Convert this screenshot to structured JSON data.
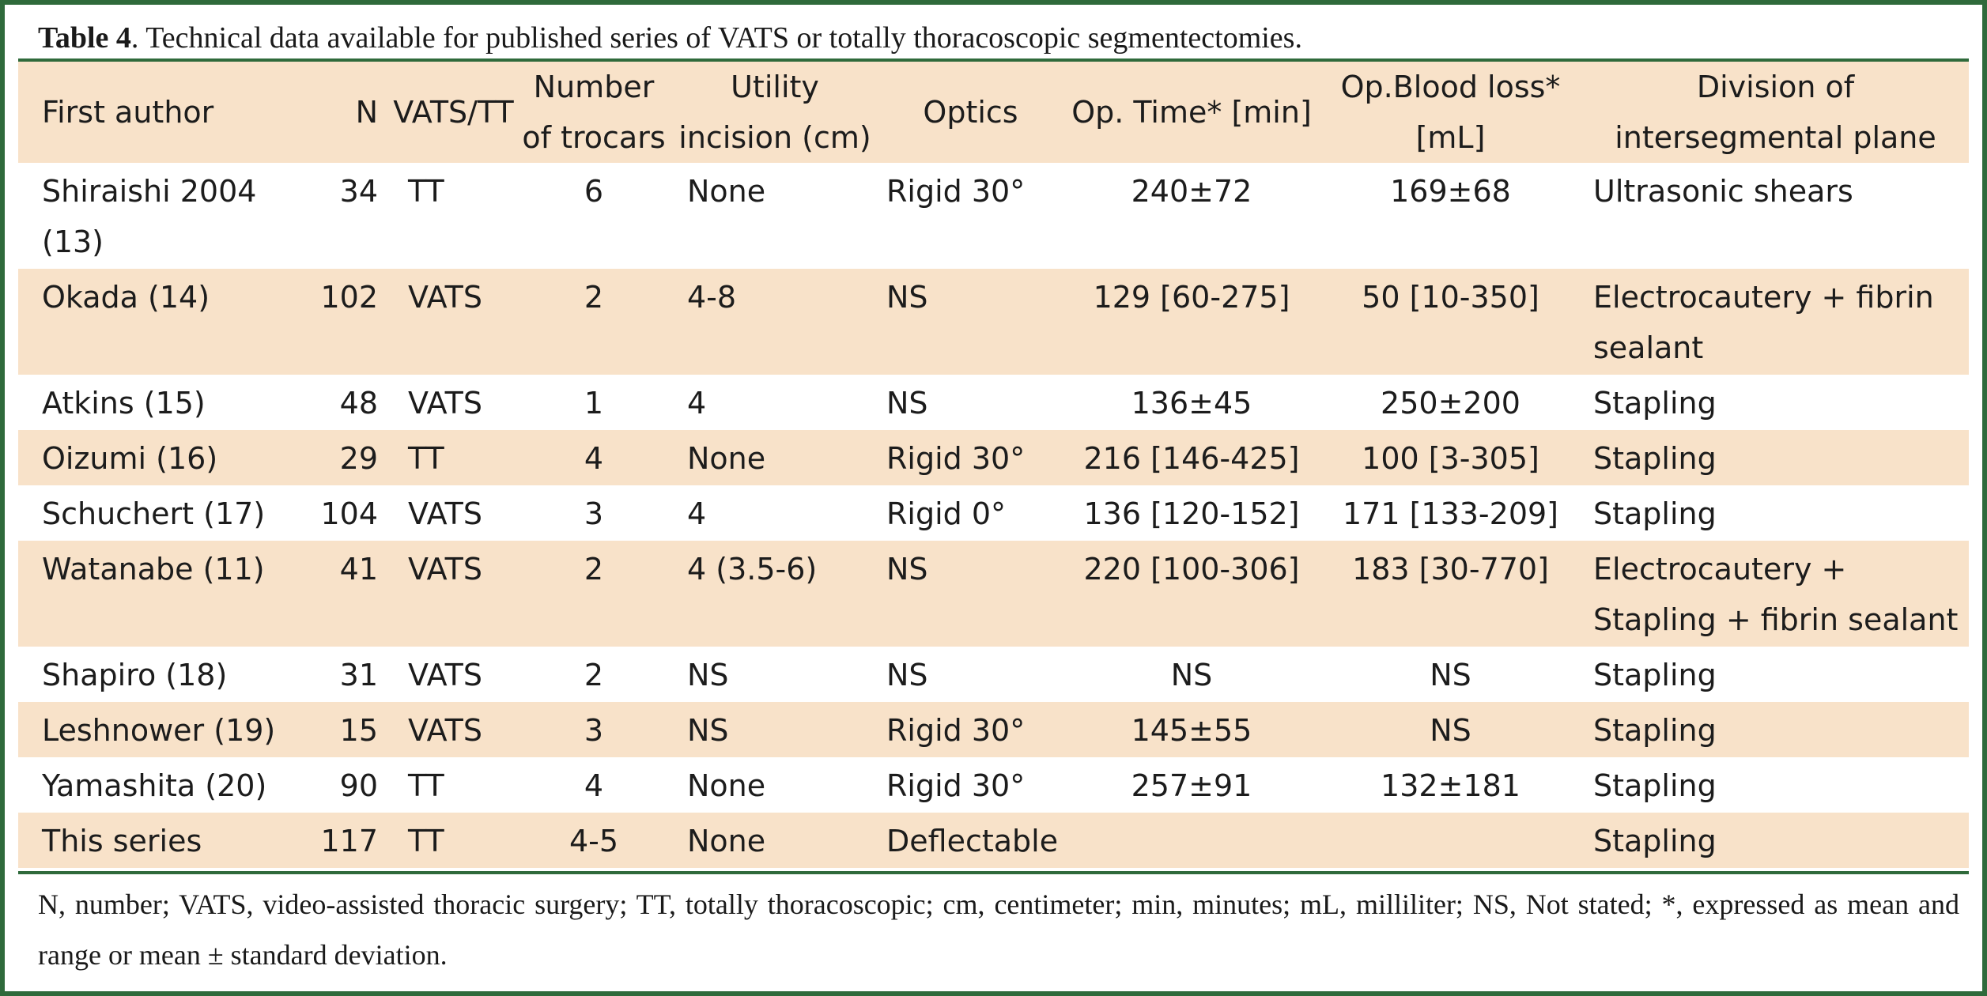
{
  "caption": {
    "label": "Table 4",
    "text": ". Technical data available for published series of VATS or totally thoracoscopic segmentectomies."
  },
  "headers": [
    "First author",
    "N",
    "VATS/TT",
    "Number of trocars",
    "Utility incision (cm)",
    "Optics",
    "Op. Time* [min]",
    "Op.Blood loss* [mL]",
    "Division of intersegmental plane"
  ],
  "rows": [
    {
      "author": "Shiraishi 2004 (13)",
      "n": "34",
      "vats_tt": "TT",
      "trocars": "6",
      "utility": "None",
      "optics": "Rigid 30°",
      "op_time": "240±72",
      "blood_loss": "169±68",
      "division": "Ultrasonic shears"
    },
    {
      "author": "Okada (14)",
      "n": "102",
      "vats_tt": "VATS",
      "trocars": "2",
      "utility": "4-8",
      "optics": "NS",
      "op_time": "129 [60-275]",
      "blood_loss": "50 [10-350]",
      "division": "Electrocautery + fibrin sealant"
    },
    {
      "author": "Atkins (15)",
      "n": "48",
      "vats_tt": "VATS",
      "trocars": "1",
      "utility": "4",
      "optics": "NS",
      "op_time": "136±45",
      "blood_loss": "250±200",
      "division": "Stapling"
    },
    {
      "author": "Oizumi (16)",
      "n": "29",
      "vats_tt": "TT",
      "trocars": "4",
      "utility": "None",
      "optics": "Rigid 30°",
      "op_time": "216 [146-425]",
      "blood_loss": "100 [3-305]",
      "division": "Stapling"
    },
    {
      "author": "Schuchert (17)",
      "n": "104",
      "vats_tt": "VATS",
      "trocars": "3",
      "utility": "4",
      "optics": "Rigid 0°",
      "op_time": "136 [120-152]",
      "blood_loss": "171 [133-209]",
      "division": "Stapling"
    },
    {
      "author": "Watanabe (11)",
      "n": "41",
      "vats_tt": "VATS",
      "trocars": "2",
      "utility": "4 (3.5-6)",
      "optics": "NS",
      "op_time": "220 [100-306]",
      "blood_loss": "183 [30-770]",
      "division": "Electrocautery + Stapling + fibrin sealant"
    },
    {
      "author": "Shapiro (18)",
      "n": "31",
      "vats_tt": "VATS",
      "trocars": "2",
      "utility": "NS",
      "optics": "NS",
      "op_time": "NS",
      "blood_loss": "NS",
      "division": "Stapling"
    },
    {
      "author": "Leshnower (19)",
      "n": "15",
      "vats_tt": "VATS",
      "trocars": "3",
      "utility": "NS",
      "optics": "Rigid 30°",
      "op_time": "145±55",
      "blood_loss": "NS",
      "division": "Stapling"
    },
    {
      "author": "Yamashita (20)",
      "n": "90",
      "vats_tt": "TT",
      "trocars": "4",
      "utility": "None",
      "optics": "Rigid 30°",
      "op_time": "257±91",
      "blood_loss": "132±181",
      "division": "Stapling"
    },
    {
      "author": "This series",
      "n": "117",
      "vats_tt": "TT",
      "trocars": "4-5",
      "utility": "None",
      "optics": "Deflectable",
      "op_time": "",
      "blood_loss": "",
      "division": "Stapling"
    }
  ],
  "footnote": "N, number; VATS, video-assisted thoracic surgery; TT, totally thoracoscopic; cm, centimeter; min, minutes; mL, milliliter; NS, Not stated; *, expressed as mean and range or mean ± standard deviation.",
  "colors": {
    "border_green": "#2f6a3b",
    "row_shade": "#f8e2c9"
  }
}
